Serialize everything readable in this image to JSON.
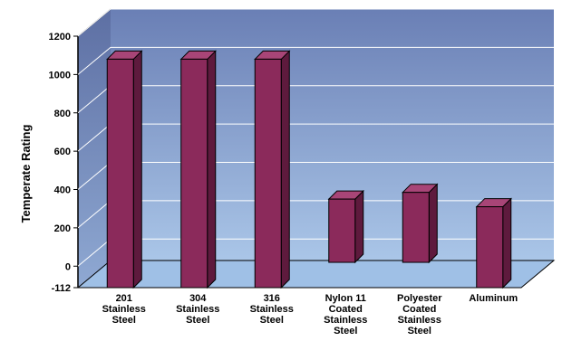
{
  "chart_data": {
    "type": "bar",
    "style": "3d-floating",
    "categories": [
      [
        "201",
        "Stainless",
        "Steel"
      ],
      [
        "304",
        "Stainless",
        "Steel"
      ],
      [
        "316",
        "Stainless",
        "Steel"
      ],
      [
        "Nylon 11",
        "Coated",
        "Stainless",
        "Steel"
      ],
      [
        "Polyester",
        "Coated",
        "Stainless",
        "Steel"
      ],
      [
        "Aluminum"
      ]
    ],
    "series": [
      {
        "ranges": [
          [
            -112,
            1080
          ],
          [
            -112,
            1080
          ],
          [
            -112,
            1080
          ],
          [
            20,
            350
          ],
          [
            20,
            385
          ],
          [
            -112,
            310
          ]
        ]
      }
    ],
    "ylabel": "Temperate Rating",
    "xlabel": "",
    "yticks": [
      -112,
      0,
      200,
      400,
      600,
      800,
      1000,
      1200
    ],
    "ylim": [
      -112,
      1200
    ],
    "grid": true,
    "colors": {
      "bar_front": "#8b2a5b",
      "bar_side": "#5e1a3d",
      "bar_top": "#a84577",
      "wall_top": "#6a7fb5",
      "wall_bottom": "#aac6e8",
      "floor": "#9fc0e6",
      "grid": "#ffffff"
    }
  }
}
